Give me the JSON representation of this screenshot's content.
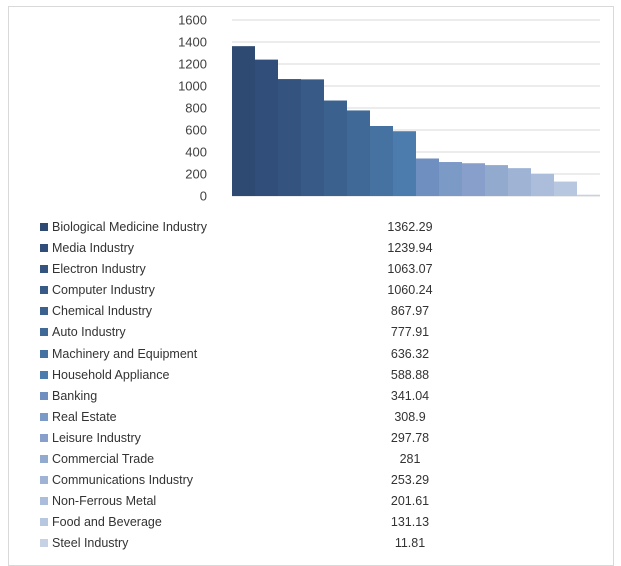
{
  "chart_data": {
    "type": "bar",
    "categories": [
      "Biological Medicine Industry",
      "Media Industry",
      "Electron Industry",
      "Computer Industry",
      "Chemical Industry",
      "Auto Industry",
      "Machinery and Equipment",
      "Household Appliance",
      "Banking",
      "Real Estate",
      "Leisure Industry",
      "Commercial Trade",
      "Communications Industry",
      "Non-Ferrous Metal",
      "Food and Beverage",
      "Steel Industry"
    ],
    "values": [
      1362.29,
      1239.94,
      1063.07,
      1060.24,
      867.97,
      777.91,
      636.32,
      588.88,
      341.04,
      308.9,
      297.78,
      281,
      253.29,
      201.61,
      131.13,
      11.81
    ],
    "value_labels": [
      "1362.29",
      "1239.94",
      "1063.07",
      "1060.24",
      "867.97",
      "777.91",
      "636.32",
      "588.88",
      "341.04",
      "308.9",
      "297.78",
      "281",
      "253.29",
      "201.61",
      "131.13",
      "11.81"
    ],
    "colors": [
      "#2e4a72",
      "#304e79",
      "#34547f",
      "#375a87",
      "#3b618f",
      "#406997",
      "#4672a2",
      "#4c7bae",
      "#6e8fbf",
      "#7b9ac6",
      "#879fca",
      "#93aacf",
      "#9fb3d4",
      "#abbdda",
      "#b8c7e0",
      "#c6d1e6"
    ],
    "ylim": [
      0,
      1600
    ],
    "yticks": [
      0,
      200,
      400,
      600,
      800,
      1000,
      1200,
      1400,
      1600
    ],
    "grid": true,
    "title": "",
    "xlabel": "",
    "ylabel": ""
  }
}
